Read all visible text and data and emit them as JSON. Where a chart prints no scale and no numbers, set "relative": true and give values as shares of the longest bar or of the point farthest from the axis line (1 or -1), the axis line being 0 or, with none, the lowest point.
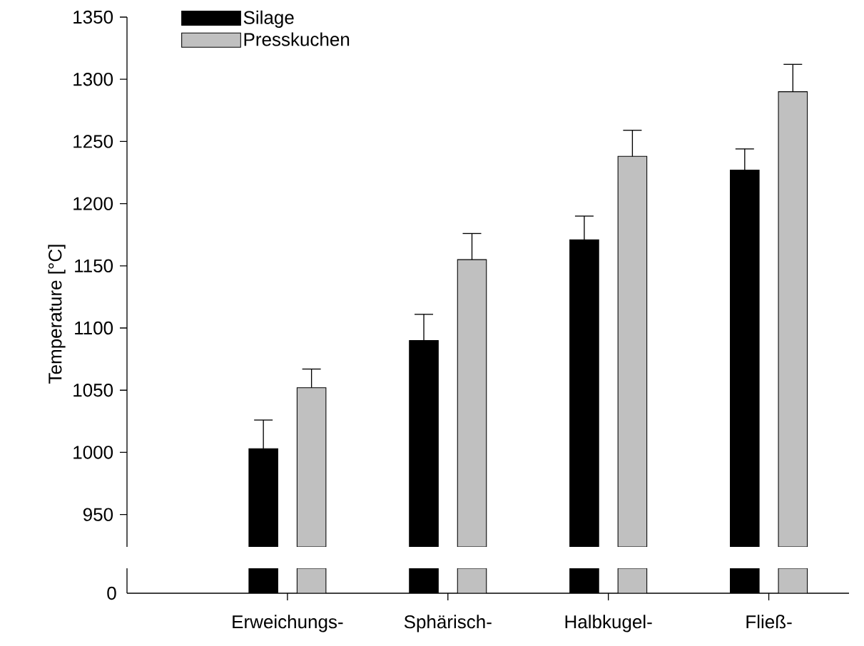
{
  "chart_data": [
    {
      "type": "bar",
      "ylabel": "Temperature [°C]",
      "categories": [
        "Erweichungs-",
        "Sphärisch-",
        "Halbkugel-",
        "Fließ-"
      ],
      "series": [
        {
          "name": "Silage",
          "color": "#000000",
          "values": [
            1003,
            1090,
            1171,
            1227
          ],
          "errors": [
            [
              1003,
              1026
            ],
            [
              1090,
              1111
            ],
            [
              1171,
              1190
            ],
            [
              1227,
              1244
            ]
          ]
        },
        {
          "name": "Presskuchen",
          "color": "#c0c0c0",
          "values": [
            1052,
            1155,
            1238,
            1290
          ],
          "errors": [
            [
              1052,
              1067
            ],
            [
              1155,
              1176
            ],
            [
              1238,
              1259
            ],
            [
              1290,
              1312
            ]
          ]
        }
      ],
      "ylim": [
        924,
        1350
      ],
      "yticks": [
        950,
        1000,
        1050,
        1100,
        1150,
        1200,
        1250,
        1300,
        1350
      ],
      "legend": "top left",
      "grid": false
    },
    {
      "type": "bar",
      "relative": true,
      "categories": [
        null,
        null,
        null,
        null
      ],
      "series": [
        {
          "color": "#000000",
          "values": [
            1,
            1,
            1,
            1
          ]
        },
        {
          "color": "#c0c0c0",
          "values": [
            1,
            1,
            1,
            1
          ]
        }
      ],
      "annotations": [
        "0"
      ]
    }
  ]
}
